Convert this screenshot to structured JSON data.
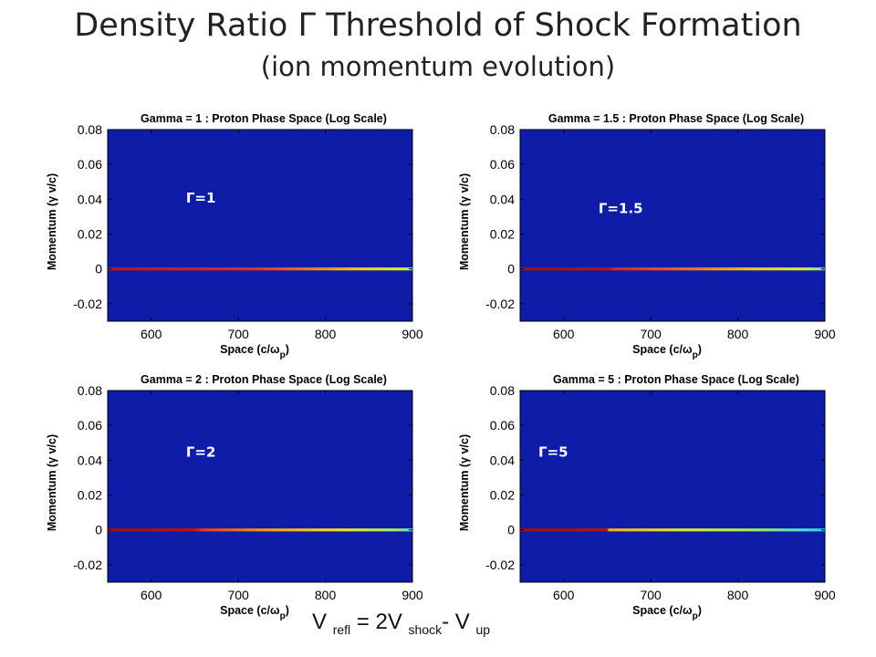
{
  "slide": {
    "title": "Density Ratio Γ Threshold of Shock Formation",
    "subtitle": "(ion momentum evolution)",
    "formula": {
      "v1": "V",
      "s1": "refl",
      "eq": " = ",
      "v2": "2V",
      "s2": "shock",
      "dash": "- ",
      "v3": "V",
      "s3": "up"
    }
  },
  "colors": {
    "plot_background": "#0f1ca8",
    "axis_text": "#000000",
    "annotation": "#ffffff"
  },
  "chart_data": [
    {
      "type": "heatmap",
      "title": "Gamma = 1 : Proton Phase Space (Log Scale)",
      "xlabel": "Space (c/ω",
      "xlabel_sub": "p",
      "xlabel_end": ")",
      "ylabel": "Momentum (γ v/c)",
      "xlim": [
        550,
        900
      ],
      "ylim": [
        -0.03,
        0.08
      ],
      "xticks": [
        "600",
        "700",
        "800",
        "900"
      ],
      "xtick_values": [
        600,
        700,
        800,
        900
      ],
      "yticks": [
        "-0.02",
        "0",
        "0.02",
        "0.04",
        "0.06",
        "0.08"
      ],
      "ytick_values": [
        -0.02,
        0,
        0.02,
        0.04,
        0.06,
        0.08
      ],
      "annotation": "Γ=1",
      "annotation_at": [
        640,
        0.038
      ],
      "band": {
        "y": 0,
        "x": [
          550,
          900
        ],
        "stops": [
          [
            550,
            "#b81818"
          ],
          [
            650,
            "#d62020"
          ],
          [
            720,
            "#e23424"
          ],
          [
            780,
            "#f0741e"
          ],
          [
            840,
            "#f5cc1e"
          ],
          [
            890,
            "#d8ee30"
          ],
          [
            900,
            "#7ce8b0"
          ]
        ]
      }
    },
    {
      "type": "heatmap",
      "title": "Gamma = 1.5 : Proton Phase Space (Log Scale)",
      "xlabel": "Space (c/ω",
      "xlabel_sub": "p",
      "xlabel_end": ")",
      "ylabel": "Momentum (γ v/c)",
      "xlim": [
        550,
        900
      ],
      "ylim": [
        -0.03,
        0.08
      ],
      "xticks": [
        "600",
        "700",
        "800",
        "900"
      ],
      "xtick_values": [
        600,
        700,
        800,
        900
      ],
      "yticks": [
        "-0.02",
        "0",
        "0.02",
        "0.04",
        "0.06",
        "0.08"
      ],
      "ytick_values": [
        -0.02,
        0,
        0.02,
        0.04,
        0.06,
        0.08
      ],
      "annotation": "Γ=1.5",
      "annotation_at": [
        640,
        0.032
      ],
      "band": {
        "y": 0,
        "x": [
          550,
          900
        ],
        "stops": [
          [
            550,
            "#9c1010"
          ],
          [
            650,
            "#b41414"
          ],
          [
            660,
            "#e02424"
          ],
          [
            740,
            "#f06a20"
          ],
          [
            820,
            "#f5c81e"
          ],
          [
            880,
            "#cfee3a"
          ],
          [
            900,
            "#6cdfc8"
          ]
        ]
      }
    },
    {
      "type": "heatmap",
      "title": "Gamma = 2 : Proton Phase Space (Log Scale)",
      "xlabel": "Space (c/ω",
      "xlabel_sub": "p",
      "xlabel_end": ")",
      "ylabel": "Momentum (γ v/c)",
      "xlim": [
        550,
        900
      ],
      "ylim": [
        -0.03,
        0.08
      ],
      "xticks": [
        "600",
        "700",
        "800",
        "900"
      ],
      "xtick_values": [
        600,
        700,
        800,
        900
      ],
      "yticks": [
        "-0.02",
        "0",
        "0.02",
        "0.04",
        "0.06",
        "0.08"
      ],
      "ytick_values": [
        -0.02,
        0,
        0.02,
        0.04,
        0.06,
        0.08
      ],
      "annotation": "Γ=2",
      "annotation_at": [
        640,
        0.042
      ],
      "band": {
        "y": 0,
        "x": [
          550,
          900
        ],
        "stops": [
          [
            550,
            "#9c1010"
          ],
          [
            650,
            "#b81414"
          ],
          [
            660,
            "#e63a22"
          ],
          [
            740,
            "#f3a022"
          ],
          [
            820,
            "#eee030"
          ],
          [
            880,
            "#9ee870"
          ],
          [
            900,
            "#5cd8e0"
          ]
        ]
      }
    },
    {
      "type": "heatmap",
      "title": "Gamma = 5 : Proton Phase Space (Log Scale)",
      "xlabel": "Space (c/ω",
      "xlabel_sub": "p",
      "xlabel_end": ")",
      "ylabel": "Momentum (γ v/c)",
      "xlim": [
        550,
        900
      ],
      "ylim": [
        -0.03,
        0.08
      ],
      "xticks": [
        "600",
        "700",
        "800",
        "900"
      ],
      "xtick_values": [
        600,
        700,
        800,
        900
      ],
      "yticks": [
        "-0.02",
        "0",
        "0.02",
        "0.04",
        "0.06",
        "0.08"
      ],
      "ytick_values": [
        -0.02,
        0,
        0.02,
        0.04,
        0.06,
        0.08
      ],
      "annotation": "Γ=5",
      "annotation_at": [
        571,
        0.042
      ],
      "band": {
        "y": 0,
        "x": [
          550,
          900
        ],
        "stops": [
          [
            550,
            "#9c1010"
          ],
          [
            650,
            "#b01414"
          ],
          [
            652,
            "#f0b020"
          ],
          [
            740,
            "#dae638"
          ],
          [
            820,
            "#9ce86a"
          ],
          [
            880,
            "#4cd6e0"
          ],
          [
            900,
            "#30c8f0"
          ]
        ]
      }
    }
  ]
}
